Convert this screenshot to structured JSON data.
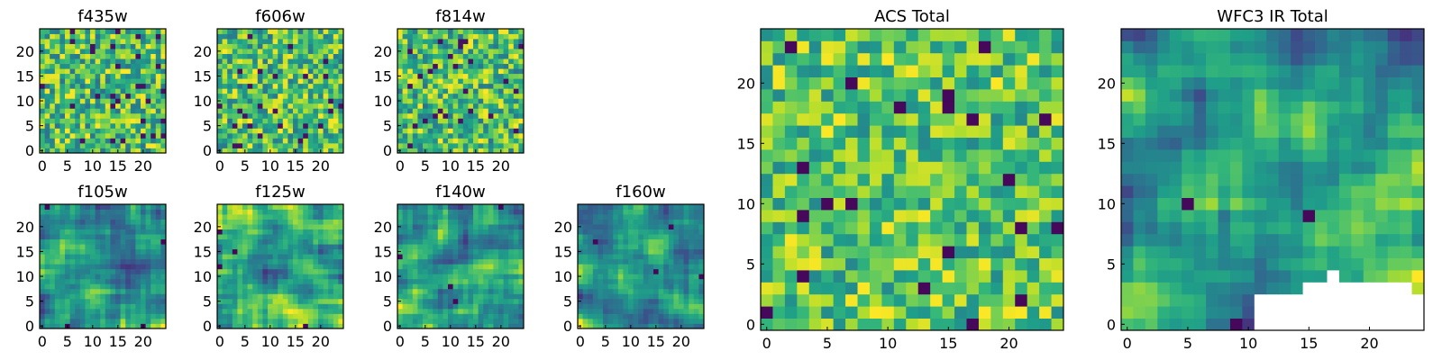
{
  "chart_data": [
    {
      "type": "heatmap",
      "title": "f435w",
      "grid_size": 25,
      "xlim": [
        0,
        25
      ],
      "ylim": [
        0,
        25
      ],
      "xticks": [
        "0",
        "5",
        "10",
        "15",
        "20"
      ],
      "yticks": [
        "0",
        "5",
        "10",
        "15",
        "20"
      ],
      "style": "noisy",
      "colormap": "viridis"
    },
    {
      "type": "heatmap",
      "title": "f606w",
      "grid_size": 25,
      "xlim": [
        0,
        25
      ],
      "ylim": [
        0,
        25
      ],
      "xticks": [
        "0",
        "5",
        "10",
        "15",
        "20"
      ],
      "yticks": [
        "0",
        "5",
        "10",
        "15",
        "20"
      ],
      "style": "noisy",
      "colormap": "viridis"
    },
    {
      "type": "heatmap",
      "title": "f814w",
      "grid_size": 25,
      "xlim": [
        0,
        25
      ],
      "ylim": [
        0,
        25
      ],
      "xticks": [
        "0",
        "5",
        "10",
        "15",
        "20"
      ],
      "yticks": [
        "0",
        "5",
        "10",
        "15",
        "20"
      ],
      "style": "noisy",
      "colormap": "viridis"
    },
    {
      "type": "heatmap",
      "title": "f105w",
      "grid_size": 25,
      "xlim": [
        0,
        25
      ],
      "ylim": [
        0,
        25
      ],
      "xticks": [
        "0",
        "5",
        "10",
        "15",
        "20"
      ],
      "yticks": [
        "0",
        "5",
        "10",
        "15",
        "20"
      ],
      "style": "smooth",
      "colormap": "viridis"
    },
    {
      "type": "heatmap",
      "title": "f125w",
      "grid_size": 25,
      "xlim": [
        0,
        25
      ],
      "ylim": [
        0,
        25
      ],
      "xticks": [
        "0",
        "5",
        "10",
        "15",
        "20"
      ],
      "yticks": [
        "0",
        "5",
        "10",
        "15",
        "20"
      ],
      "style": "smooth",
      "colormap": "viridis"
    },
    {
      "type": "heatmap",
      "title": "f140w",
      "grid_size": 25,
      "xlim": [
        0,
        25
      ],
      "ylim": [
        0,
        25
      ],
      "xticks": [
        "0",
        "5",
        "10",
        "15",
        "20"
      ],
      "yticks": [
        "0",
        "5",
        "10",
        "15",
        "20"
      ],
      "style": "smooth",
      "colormap": "viridis"
    },
    {
      "type": "heatmap",
      "title": "f160w",
      "grid_size": 25,
      "xlim": [
        0,
        25
      ],
      "ylim": [
        0,
        25
      ],
      "xticks": [
        "0",
        "5",
        "10",
        "15",
        "20"
      ],
      "yticks": [
        "0",
        "5",
        "10",
        "15",
        "20"
      ],
      "style": "smooth",
      "colormap": "viridis"
    },
    {
      "type": "heatmap",
      "title": "ACS Total",
      "grid_size": 25,
      "xlim": [
        0,
        25
      ],
      "ylim": [
        0,
        25
      ],
      "xticks": [
        "0",
        "5",
        "10",
        "15",
        "20"
      ],
      "yticks": [
        "0",
        "5",
        "10",
        "15",
        "20"
      ],
      "style": "noisy_bright",
      "colormap": "viridis"
    },
    {
      "type": "heatmap",
      "title": "WFC3 IR Total",
      "grid_size": 25,
      "xlim": [
        0,
        25
      ],
      "ylim": [
        0,
        25
      ],
      "xticks": [
        "0",
        "5",
        "10",
        "15",
        "20"
      ],
      "yticks": [
        "0",
        "5",
        "10",
        "15",
        "20"
      ],
      "style": "smooth_masked",
      "colormap": "viridis",
      "masked_region": "lower-right, x from 11 to 25 below a stepped boundary (rows 0-3)"
    }
  ]
}
